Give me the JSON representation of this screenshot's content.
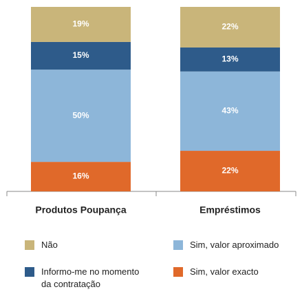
{
  "chart_data": {
    "type": "stacked_bar",
    "categories": [
      "Produtos Poupança",
      "Empréstimos"
    ],
    "series": [
      {
        "name": "Sim, valor exacto",
        "color": "#e0692a",
        "values": [
          16,
          22
        ],
        "value_labels": [
          "16%",
          "22%"
        ]
      },
      {
        "name": "Sim, valor aproximado",
        "color": "#8db6d9",
        "values": [
          50,
          43
        ],
        "value_labels": [
          "50%",
          "43%"
        ]
      },
      {
        "name": "Informo-me no momento da contratação",
        "color": "#2e5b8a",
        "values": [
          15,
          13
        ],
        "value_labels": [
          "15%",
          "13%"
        ]
      },
      {
        "name": "Não",
        "color": "#c9b57a",
        "values": [
          19,
          22
        ],
        "value_labels": [
          "19%",
          "22%"
        ]
      }
    ]
  }
}
